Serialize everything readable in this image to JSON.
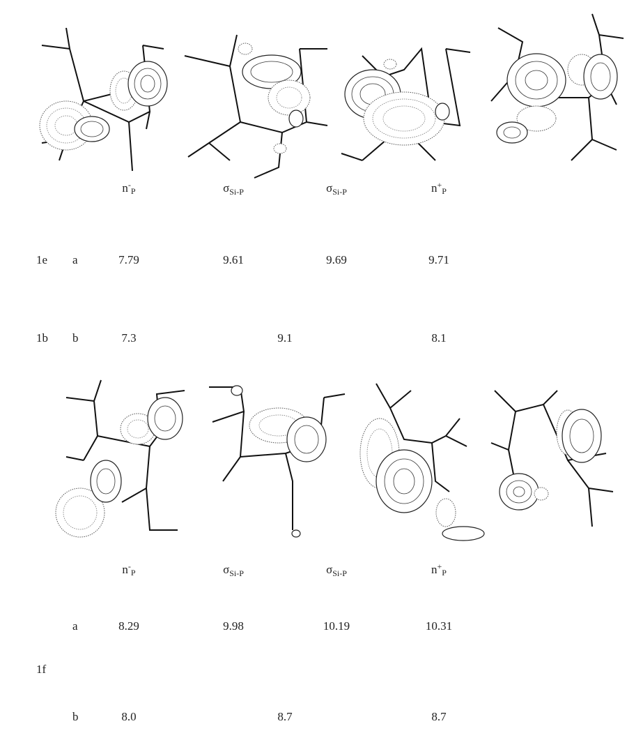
{
  "panels": [
    {
      "orbital_labels": [
        {
          "main": "n",
          "sup": "-",
          "sub": "P"
        },
        {
          "main": "σ",
          "sub": "Si-P"
        },
        {
          "main": "σ",
          "sub": "Si-P"
        },
        {
          "main": "n",
          "sup": "+",
          "sub": "P"
        }
      ],
      "rows": [
        {
          "compound": "1e",
          "method": "a",
          "values": [
            "7.79",
            "9.61",
            "9.69",
            "9.71"
          ]
        },
        {
          "compound": "1b",
          "method": "b",
          "values": [
            "7.3",
            "9.1",
            "8.1"
          ]
        }
      ]
    },
    {
      "orbital_labels": [
        {
          "main": "n",
          "sup": "-",
          "sub": "P"
        },
        {
          "main": "σ",
          "sub": "Si-P"
        },
        {
          "main": "σ",
          "sub": "Si-P"
        },
        {
          "main": "n",
          "sup": "+",
          "sub": "P"
        }
      ],
      "compound": "1f",
      "rows": [
        {
          "method": "a",
          "values": [
            "8.29",
            "9.98",
            "10.19",
            "10.31"
          ]
        },
        {
          "method": "b",
          "values": [
            "8.0",
            "8.7",
            "8.7"
          ]
        }
      ]
    }
  ]
}
